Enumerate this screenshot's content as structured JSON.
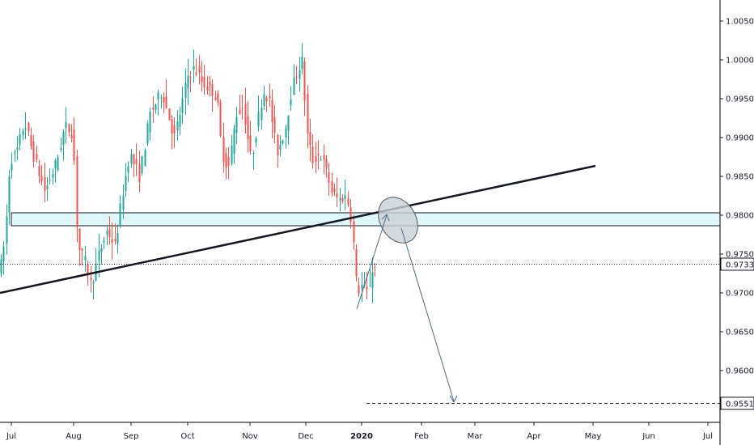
{
  "chart_data": {
    "type": "candlestick",
    "y_ticks": [
      "1.00500",
      "1.00000",
      "0.99500",
      "0.99000",
      "0.98500",
      "0.98000",
      "0.97500",
      "0.97000",
      "0.96500",
      "0.96000"
    ],
    "y_tick_values": [
      1.005,
      1.0,
      0.995,
      0.99,
      0.985,
      0.98,
      0.975,
      0.97,
      0.965,
      0.96
    ],
    "x_ticks": [
      "Jul",
      "Aug",
      "Sep",
      "Oct",
      "Nov",
      "Dec",
      "2020",
      "Feb",
      "Mar",
      "Apr",
      "May",
      "Jun",
      "Jul"
    ],
    "x_tick_bold": "2020",
    "ylim": [
      0.9522,
      1.007
    ],
    "price_label": "0.97334",
    "price_value": 0.97334,
    "target_label": "0.95511",
    "target_value": 0.95511,
    "zone": {
      "top": 0.98015,
      "bottom": 0.97845
    },
    "trendline": {
      "from": [
        "Jul",
        0.9695
      ],
      "to": [
        "May",
        0.9862
      ]
    },
    "colors": {
      "bull": "#26a69a",
      "bear": "#ef5350",
      "zone_fill": "#e0f7fa",
      "projection": "#4a6a85",
      "text": "#131722"
    }
  }
}
